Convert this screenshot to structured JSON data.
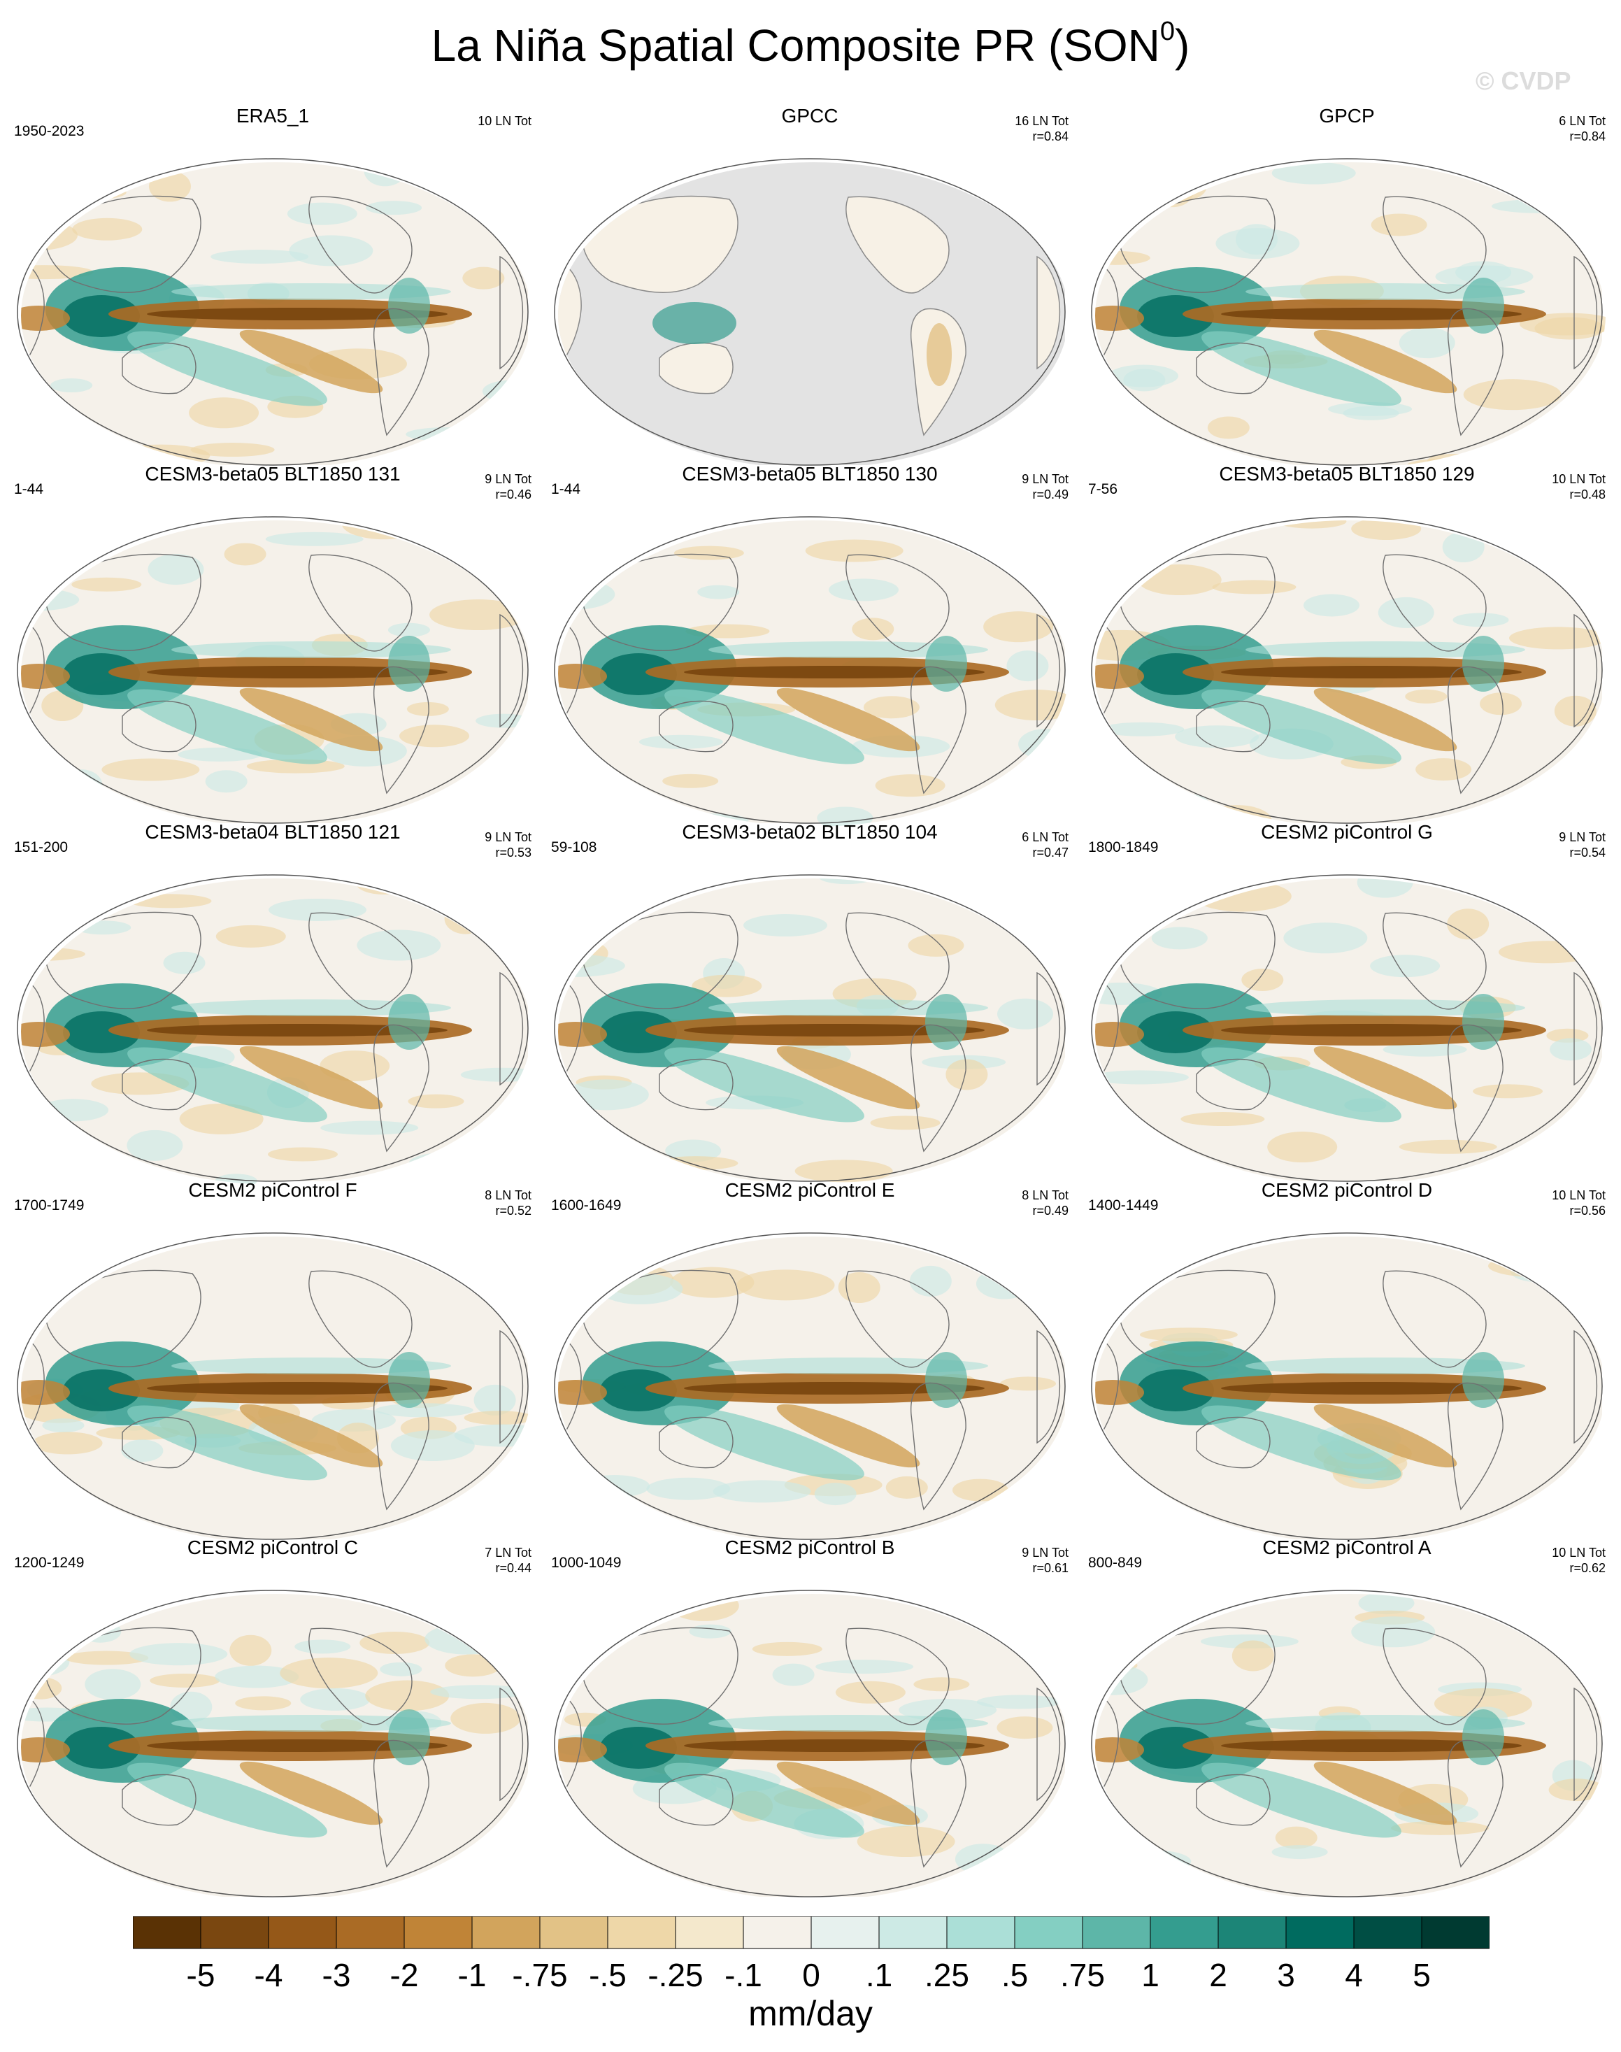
{
  "title": "La Niña Spatial Composite PR (SON",
  "title_superscript": "0",
  "title_suffix": ")",
  "watermark": "© CVDP",
  "chart_data": {
    "type": "heatmap",
    "projection": "Robinson (global, Pacific-centered)",
    "variable": "Precipitation anomaly",
    "panels": [
      {
        "title": "ERA5_1",
        "years": "1950-2023",
        "events": "10 LN Tot",
        "r": ""
      },
      {
        "title": "GPCC",
        "years": "",
        "events": "16 LN Tot",
        "r": "r=0.84",
        "land_only": true
      },
      {
        "title": "GPCP",
        "years": "",
        "events": "6 LN Tot",
        "r": "r=0.84"
      },
      {
        "title": "CESM3-beta05 BLT1850 131",
        "years": "1-44",
        "events": "9 LN Tot",
        "r": "r=0.46"
      },
      {
        "title": "CESM3-beta05 BLT1850 130",
        "years": "1-44",
        "events": "9 LN Tot",
        "r": "r=0.49"
      },
      {
        "title": "CESM3-beta05 BLT1850 129",
        "years": "7-56",
        "events": "10 LN Tot",
        "r": "r=0.48"
      },
      {
        "title": "CESM3-beta04 BLT1850 121",
        "years": "151-200",
        "events": "9 LN Tot",
        "r": "r=0.53"
      },
      {
        "title": "CESM3-beta02 BLT1850 104",
        "years": "59-108",
        "events": "6 LN Tot",
        "r": "r=0.47"
      },
      {
        "title": "CESM2 piControl G",
        "years": "1800-1849",
        "events": "9 LN Tot",
        "r": "r=0.54"
      },
      {
        "title": "CESM2 piControl F",
        "years": "1700-1749",
        "events": "8 LN Tot",
        "r": "r=0.52"
      },
      {
        "title": "CESM2 piControl E",
        "years": "1600-1649",
        "events": "8 LN Tot",
        "r": "r=0.49"
      },
      {
        "title": "CESM2 piControl D",
        "years": "1400-1449",
        "events": "10 LN Tot",
        "r": "r=0.56"
      },
      {
        "title": "CESM2 piControl C",
        "years": "1200-1249",
        "events": "7 LN Tot",
        "r": "r=0.44"
      },
      {
        "title": "CESM2 piControl B",
        "years": "1000-1049",
        "events": "9 LN Tot",
        "r": "r=0.61"
      },
      {
        "title": "CESM2 piControl A",
        "years": "800-849",
        "events": "10 LN Tot",
        "r": "r=0.62"
      }
    ],
    "colorbar": {
      "label": "mm/day",
      "ticks": [
        "-5",
        "-4",
        "-3",
        "-2",
        "-1",
        "-.75",
        "-.5",
        "-.25",
        "-.1",
        "0",
        ".1",
        ".25",
        ".5",
        ".75",
        "1",
        "2",
        "3",
        "4",
        "5"
      ],
      "colors": [
        "#5a3205",
        "#7a4710",
        "#955818",
        "#aa6b25",
        "#c08437",
        "#d2a45c",
        "#e2c286",
        "#eed7a8",
        "#f4e8cc",
        "#f5f1ea",
        "#e7f1ee",
        "#cdeae5",
        "#abdfd7",
        "#84cfc2",
        "#5db6a8",
        "#349d8f",
        "#1c8577",
        "#006b5f",
        "#004e44",
        "#003a31"
      ]
    }
  }
}
